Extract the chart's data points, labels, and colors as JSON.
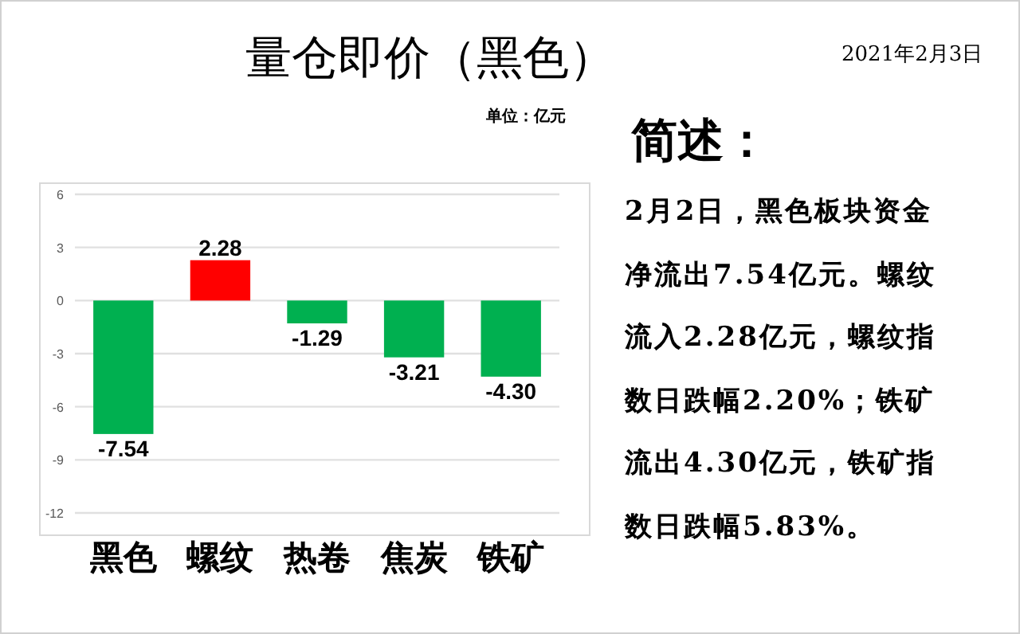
{
  "chart_data": {
    "type": "bar",
    "title": "量仓即价（黑色）",
    "subtitle": "单位：亿元",
    "categories": [
      "黑色",
      "螺纹",
      "热卷",
      "焦炭",
      "铁矿"
    ],
    "values": [
      -7.54,
      2.28,
      -1.29,
      -3.21,
      -4.3
    ],
    "value_labels": [
      "-7.54",
      "2.28",
      "-1.29",
      "-3.21",
      "-4.30"
    ],
    "colors": [
      "#00b050",
      "#ff0000",
      "#00b050",
      "#00b050",
      "#00b050"
    ],
    "ylim": [
      -12,
      6
    ],
    "yticks": [
      -12,
      -9,
      -6,
      -3,
      0,
      3,
      6
    ],
    "grid": "y",
    "annotations": [
      "2021年2月3日",
      "简述：",
      "2月2日，黑色板块资金净流出7.54亿元。螺纹流入2.28亿元，螺纹指数日跌幅2.20%；铁矿流出4.30亿元，铁矿指数日跌幅5.83%。"
    ]
  }
}
